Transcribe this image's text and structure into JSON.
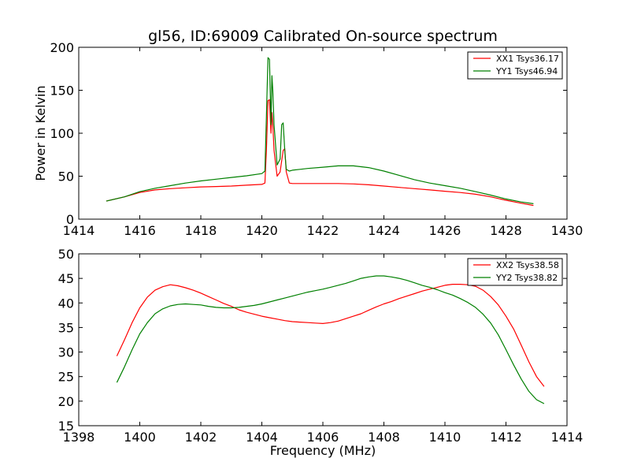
{
  "figure": {
    "title": "gl56, ID:69009 Calibrated On-source spectrum"
  },
  "chart_data": [
    {
      "type": "line",
      "ylabel": "Power in Kelvin",
      "xlabel": "",
      "xlim": [
        1414,
        1430
      ],
      "ylim": [
        0,
        200
      ],
      "xticks": [
        1414,
        1416,
        1418,
        1420,
        1422,
        1424,
        1426,
        1428,
        1430
      ],
      "yticks": [
        0,
        50,
        100,
        150,
        200
      ],
      "grid": false,
      "legend_position": "top-right",
      "series": [
        {
          "name": "XX1 Tsys36.17",
          "color": "#ff0000",
          "x": [
            1414.9,
            1415.5,
            1416.0,
            1416.5,
            1417.0,
            1417.5,
            1418.0,
            1418.5,
            1419.0,
            1419.5,
            1420.0,
            1420.1,
            1420.15,
            1420.2,
            1420.25,
            1420.3,
            1420.33,
            1420.36,
            1420.4,
            1420.5,
            1420.6,
            1420.7,
            1420.75,
            1420.8,
            1420.9,
            1421.0,
            1421.5,
            1422.0,
            1422.5,
            1423.0,
            1423.5,
            1424.0,
            1424.5,
            1425.0,
            1425.5,
            1426.0,
            1426.5,
            1427.0,
            1427.5,
            1428.0,
            1428.5,
            1428.9
          ],
          "values": [
            21,
            26,
            31,
            34,
            35.5,
            36.5,
            37.5,
            38,
            38.5,
            39.5,
            40.5,
            42,
            80,
            138,
            139,
            100,
            124,
            110,
            80,
            50,
            55,
            80,
            82,
            55,
            42,
            41.5,
            41.5,
            41.5,
            41.5,
            41,
            40,
            38.5,
            37,
            35.5,
            34,
            32.5,
            31,
            29,
            26,
            22,
            18.5,
            16
          ]
        },
        {
          "name": "YY1 Tsys46.94",
          "color": "#008000",
          "x": [
            1414.9,
            1415.5,
            1416.0,
            1416.5,
            1417.0,
            1417.5,
            1418.0,
            1418.5,
            1419.0,
            1419.5,
            1420.0,
            1420.1,
            1420.15,
            1420.2,
            1420.25,
            1420.3,
            1420.33,
            1420.36,
            1420.4,
            1420.5,
            1420.6,
            1420.65,
            1420.7,
            1420.75,
            1420.8,
            1420.9,
            1421.0,
            1421.5,
            1422.0,
            1422.5,
            1423.0,
            1423.5,
            1424.0,
            1424.5,
            1425.0,
            1425.5,
            1426.0,
            1426.5,
            1427.0,
            1427.5,
            1428.0,
            1428.5,
            1428.9
          ],
          "values": [
            21,
            26,
            32,
            36,
            39,
            42,
            44.5,
            46.5,
            48.5,
            50.5,
            53,
            56,
            120,
            188,
            186,
            110,
            167,
            150,
            110,
            63,
            70,
            110,
            112,
            80,
            58,
            56,
            57,
            59,
            60.5,
            62,
            62,
            60,
            56,
            51,
            46,
            42,
            39,
            36,
            32,
            28,
            23.5,
            20,
            18
          ]
        }
      ]
    },
    {
      "type": "line",
      "ylabel": "",
      "xlabel": "Frequency (MHz)",
      "xlim": [
        1398,
        1414
      ],
      "ylim": [
        15,
        50
      ],
      "xticks": [
        1398,
        1400,
        1402,
        1404,
        1406,
        1408,
        1410,
        1412,
        1414
      ],
      "yticks": [
        15,
        20,
        25,
        30,
        35,
        40,
        45,
        50
      ],
      "grid": false,
      "legend_position": "top-right",
      "series": [
        {
          "name": "XX2 Tsys38.58",
          "color": "#ff0000",
          "x": [
            1399.25,
            1399.5,
            1399.75,
            1400.0,
            1400.25,
            1400.5,
            1400.75,
            1401.0,
            1401.25,
            1401.5,
            1401.75,
            1402.0,
            1402.25,
            1402.5,
            1402.75,
            1403.0,
            1403.25,
            1403.5,
            1403.75,
            1404.0,
            1404.25,
            1404.5,
            1404.75,
            1405.0,
            1405.25,
            1405.5,
            1405.75,
            1406.0,
            1406.25,
            1406.5,
            1406.75,
            1407.0,
            1407.25,
            1407.5,
            1407.75,
            1408.0,
            1408.25,
            1408.5,
            1408.75,
            1409.0,
            1409.25,
            1409.5,
            1409.75,
            1410.0,
            1410.25,
            1410.5,
            1410.75,
            1411.0,
            1411.25,
            1411.5,
            1411.75,
            1412.0,
            1412.25,
            1412.5,
            1412.75,
            1413.0,
            1413.25
          ],
          "values": [
            29.2,
            32.5,
            36.0,
            39.0,
            41.2,
            42.6,
            43.3,
            43.7,
            43.5,
            43.1,
            42.6,
            42.0,
            41.3,
            40.6,
            39.9,
            39.3,
            38.6,
            38.1,
            37.7,
            37.3,
            37.0,
            36.7,
            36.4,
            36.2,
            36.1,
            36.0,
            35.9,
            35.8,
            36.0,
            36.3,
            36.8,
            37.3,
            37.8,
            38.5,
            39.2,
            39.8,
            40.3,
            40.9,
            41.4,
            41.9,
            42.4,
            42.8,
            43.2,
            43.6,
            43.8,
            43.8,
            43.7,
            43.4,
            42.6,
            41.3,
            39.6,
            37.3,
            34.7,
            31.4,
            28.0,
            25.0,
            23.0
          ]
        },
        {
          "name": "YY2 Tsys38.82",
          "color": "#008000",
          "x": [
            1399.25,
            1399.5,
            1399.75,
            1400.0,
            1400.25,
            1400.5,
            1400.75,
            1401.0,
            1401.25,
            1401.5,
            1401.75,
            1402.0,
            1402.25,
            1402.5,
            1402.75,
            1403.0,
            1403.25,
            1403.5,
            1403.75,
            1404.0,
            1404.25,
            1404.5,
            1404.75,
            1405.0,
            1405.25,
            1405.5,
            1405.75,
            1406.0,
            1406.25,
            1406.5,
            1406.75,
            1407.0,
            1407.25,
            1407.5,
            1407.75,
            1408.0,
            1408.25,
            1408.5,
            1408.75,
            1409.0,
            1409.25,
            1409.5,
            1409.75,
            1410.0,
            1410.25,
            1410.5,
            1410.75,
            1411.0,
            1411.25,
            1411.5,
            1411.75,
            1412.0,
            1412.25,
            1412.5,
            1412.75,
            1413.0,
            1413.25
          ],
          "values": [
            23.8,
            27.0,
            30.5,
            33.7,
            36.0,
            37.8,
            38.8,
            39.4,
            39.7,
            39.8,
            39.7,
            39.6,
            39.3,
            39.1,
            39.0,
            39.0,
            39.1,
            39.3,
            39.5,
            39.8,
            40.2,
            40.6,
            41.0,
            41.4,
            41.8,
            42.2,
            42.5,
            42.8,
            43.2,
            43.6,
            44.0,
            44.5,
            45.0,
            45.3,
            45.5,
            45.5,
            45.3,
            45.0,
            44.6,
            44.1,
            43.6,
            43.2,
            42.7,
            42.1,
            41.6,
            40.9,
            40.1,
            39.1,
            37.7,
            35.9,
            33.5,
            30.5,
            27.4,
            24.5,
            22.0,
            20.3,
            19.5
          ]
        }
      ]
    }
  ]
}
